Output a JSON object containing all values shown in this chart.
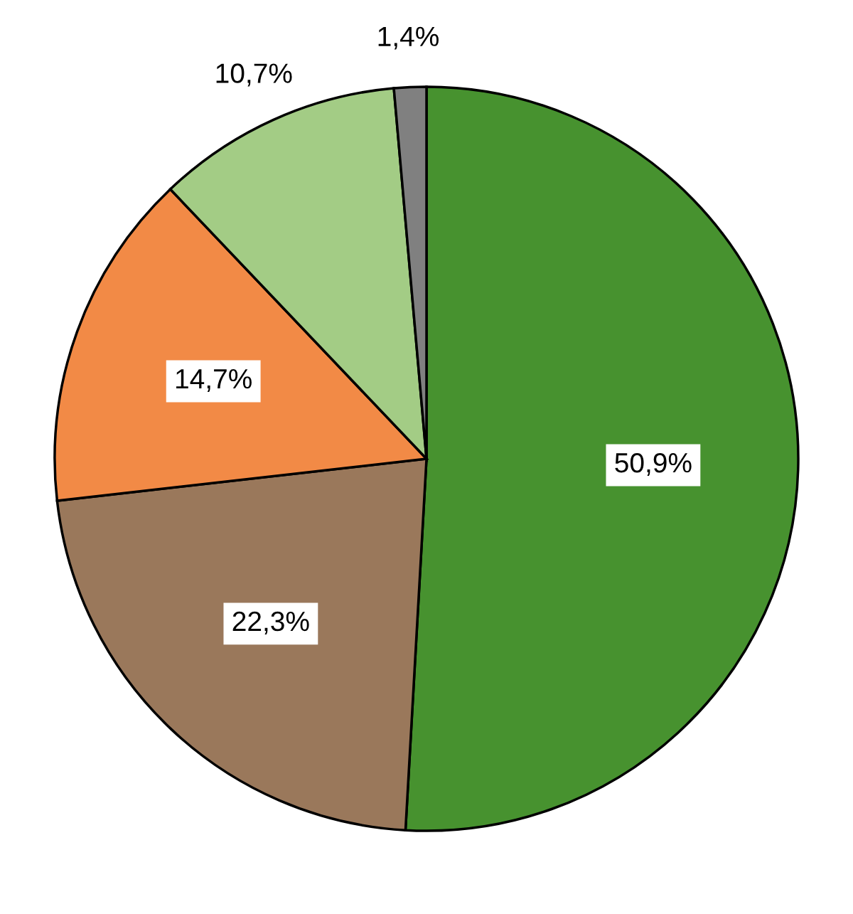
{
  "chart_data": {
    "type": "pie",
    "categories": [
      null,
      null,
      null,
      null,
      null
    ],
    "values": [
      50.9,
      22.3,
      14.7,
      10.7,
      1.4
    ],
    "colors": [
      "#47922f",
      "#9a785b",
      "#f28a46",
      "#a3cc85",
      "#808080"
    ],
    "value_labels": [
      "50,9%",
      "22,3%",
      "14,7%",
      "10,7%",
      "1,4%"
    ]
  }
}
